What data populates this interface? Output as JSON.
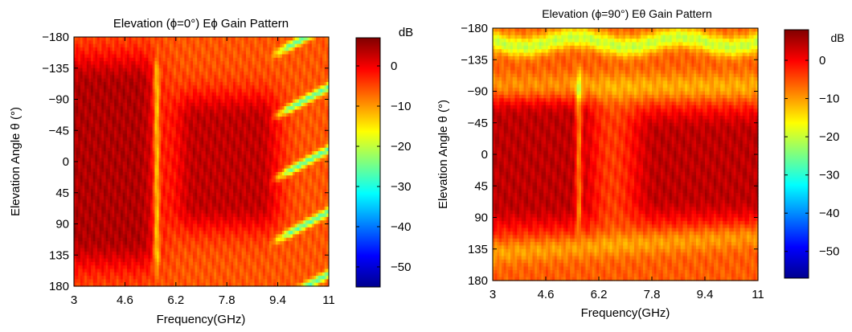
{
  "chart_data": [
    {
      "type": "heatmap",
      "title": "Elevation (ϕ=0°) Eϕ Gain Pattern",
      "xlabel": "Frequency(GHz)",
      "ylabel": "Elevation Angle θ (°)",
      "xlim": [
        3,
        11
      ],
      "ylim": [
        180,
        -180
      ],
      "xticks": [
        "3",
        "4.6",
        "6.2",
        "7.8",
        "9.4",
        "11"
      ],
      "yticks": [
        "−180",
        "−135",
        "−90",
        "−45",
        "0",
        "45",
        "90",
        "135",
        "180"
      ],
      "colorbar": {
        "unit": "dB",
        "range": [
          -55,
          7
        ],
        "ticks": [
          "0",
          "−10",
          "−20",
          "−30",
          "−40",
          "−50"
        ]
      },
      "colormap": "jet",
      "features": [
        {
          "kind": "narrow-ridge",
          "freq_ghz": 5.6,
          "theta_deg": [
            -120,
            130
          ],
          "level_db": -15
        },
        {
          "kind": "dark-lobe",
          "freq_ghz": [
            3.0,
            5.0
          ],
          "theta_deg": [
            -110,
            110
          ],
          "level_db": 5
        },
        {
          "kind": "dark-lobe",
          "freq_ghz": [
            6.8,
            8.8
          ],
          "theta_deg": [
            -60,
            60
          ],
          "level_db": 4
        },
        {
          "kind": "nulls",
          "freq_ghz": [
            9.2,
            11.0
          ],
          "level_db": -28
        }
      ]
    },
    {
      "type": "heatmap",
      "title": "Elevation (ϕ=90°) Eθ Gain Pattern",
      "xlabel": "Frequency(GHz)",
      "ylabel": "Elevation Angle θ (°)",
      "xlim": [
        3,
        11
      ],
      "ylim": [
        180,
        -180
      ],
      "xticks": [
        "3",
        "4.6",
        "6.2",
        "7.8",
        "9.4",
        "11"
      ],
      "yticks": [
        "−180",
        "−135",
        "−90",
        "−45",
        "0",
        "45",
        "90",
        "135",
        "180"
      ],
      "colorbar": {
        "unit": "dB",
        "range": [
          -57,
          8
        ],
        "ticks": [
          "0",
          "−10",
          "−20",
          "−30",
          "−40",
          "−50"
        ]
      },
      "colormap": "jet",
      "features": [
        {
          "kind": "narrow-ridge",
          "freq_ghz": 5.6,
          "theta_deg": [
            -90,
            80
          ],
          "level_db": -15
        },
        {
          "kind": "dark-lobe",
          "freq_ghz": [
            3.0,
            5.5
          ],
          "theta_deg": [
            -50,
            70
          ],
          "level_db": 5
        },
        {
          "kind": "dark-lobe",
          "freq_ghz": [
            8.0,
            11.0
          ],
          "theta_deg": [
            -30,
            60
          ],
          "level_db": 5
        },
        {
          "kind": "nulls",
          "freq_ghz": [
            3.0,
            11.0
          ],
          "theta_deg": [
            -180,
            -150
          ],
          "level_db": -28
        }
      ]
    }
  ]
}
